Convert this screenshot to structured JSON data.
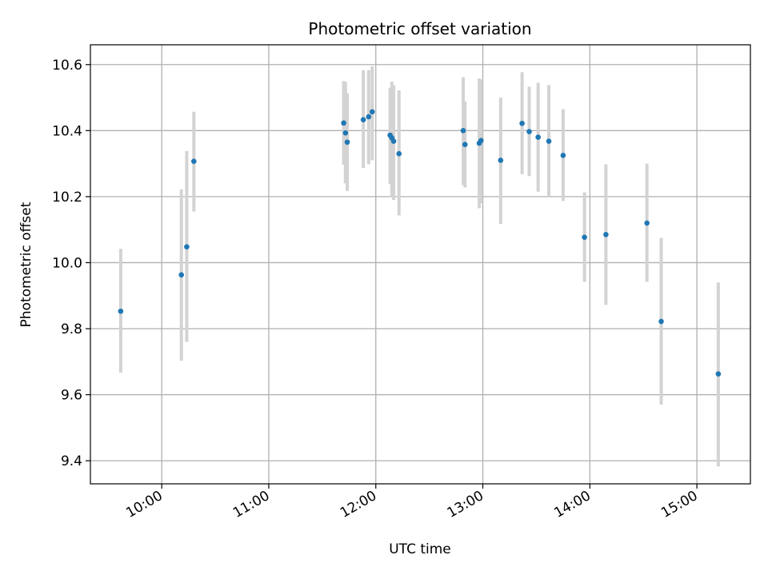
{
  "chart_data": {
    "type": "scatter",
    "title": "Photometric offset variation",
    "xlabel": "UTC time",
    "ylabel": "Photometric offset",
    "xlim": [
      "09:20",
      "15:30"
    ],
    "ylim": [
      9.33,
      10.66
    ],
    "x_ticks": [
      "10:00",
      "11:00",
      "12:00",
      "13:00",
      "14:00",
      "15:00"
    ],
    "y_ticks": [
      9.4,
      9.6,
      9.8,
      10.0,
      10.2,
      10.4,
      10.6
    ],
    "y_tick_labels": [
      "9.4",
      "9.6",
      "9.8",
      "10.0",
      "10.2",
      "10.4",
      "10.6"
    ],
    "grid": true,
    "point_color": "#1f77b4",
    "errorbar_color": "#d3d3d3",
    "series": [
      {
        "points": [
          {
            "x": "09:37",
            "y": 9.853,
            "err_low": 9.667,
            "err_high": 10.042
          },
          {
            "x": "10:11",
            "y": 9.963,
            "err_low": 9.703,
            "err_high": 10.222
          },
          {
            "x": "10:14",
            "y": 10.048,
            "err_low": 9.76,
            "err_high": 10.338
          },
          {
            "x": "10:18",
            "y": 10.307,
            "err_low": 10.155,
            "err_high": 10.457
          },
          {
            "x": "11:42",
            "y": 10.423,
            "err_low": 10.297,
            "err_high": 10.55
          },
          {
            "x": "11:43",
            "y": 10.393,
            "err_low": 10.24,
            "err_high": 10.548
          },
          {
            "x": "11:44",
            "y": 10.365,
            "err_low": 10.217,
            "err_high": 10.513
          },
          {
            "x": "11:53",
            "y": 10.433,
            "err_low": 10.287,
            "err_high": 10.583
          },
          {
            "x": "11:56",
            "y": 10.442,
            "err_low": 10.298,
            "err_high": 10.583
          },
          {
            "x": "11:58",
            "y": 10.457,
            "err_low": 10.31,
            "err_high": 10.595
          },
          {
            "x": "12:08",
            "y": 10.386,
            "err_low": 10.238,
            "err_high": 10.53
          },
          {
            "x": "12:09",
            "y": 10.378,
            "err_low": 10.2,
            "err_high": 10.548
          },
          {
            "x": "12:10",
            "y": 10.368,
            "err_low": 10.19,
            "err_high": 10.538
          },
          {
            "x": "12:13",
            "y": 10.33,
            "err_low": 10.143,
            "err_high": 10.522
          },
          {
            "x": "12:49",
            "y": 10.4,
            "err_low": 10.235,
            "err_high": 10.562
          },
          {
            "x": "12:50",
            "y": 10.358,
            "err_low": 10.228,
            "err_high": 10.488
          },
          {
            "x": "12:58",
            "y": 10.362,
            "err_low": 10.165,
            "err_high": 10.558
          },
          {
            "x": "12:59",
            "y": 10.37,
            "err_low": 10.18,
            "err_high": 10.555
          },
          {
            "x": "13:10",
            "y": 10.31,
            "err_low": 10.117,
            "err_high": 10.5
          },
          {
            "x": "13:22",
            "y": 10.422,
            "err_low": 10.268,
            "err_high": 10.577
          },
          {
            "x": "13:26",
            "y": 10.397,
            "err_low": 10.262,
            "err_high": 10.533
          },
          {
            "x": "13:31",
            "y": 10.38,
            "err_low": 10.215,
            "err_high": 10.545
          },
          {
            "x": "13:37",
            "y": 10.368,
            "err_low": 10.2,
            "err_high": 10.538
          },
          {
            "x": "13:45",
            "y": 10.325,
            "err_low": 10.187,
            "err_high": 10.465
          },
          {
            "x": "13:57",
            "y": 10.077,
            "err_low": 9.942,
            "err_high": 10.213
          },
          {
            "x": "14:09",
            "y": 10.085,
            "err_low": 9.872,
            "err_high": 10.298
          },
          {
            "x": "14:32",
            "y": 10.12,
            "err_low": 9.942,
            "err_high": 10.3
          },
          {
            "x": "14:40",
            "y": 9.822,
            "err_low": 9.57,
            "err_high": 10.075
          },
          {
            "x": "15:12",
            "y": 9.663,
            "err_low": 9.383,
            "err_high": 9.94
          }
        ]
      }
    ]
  }
}
